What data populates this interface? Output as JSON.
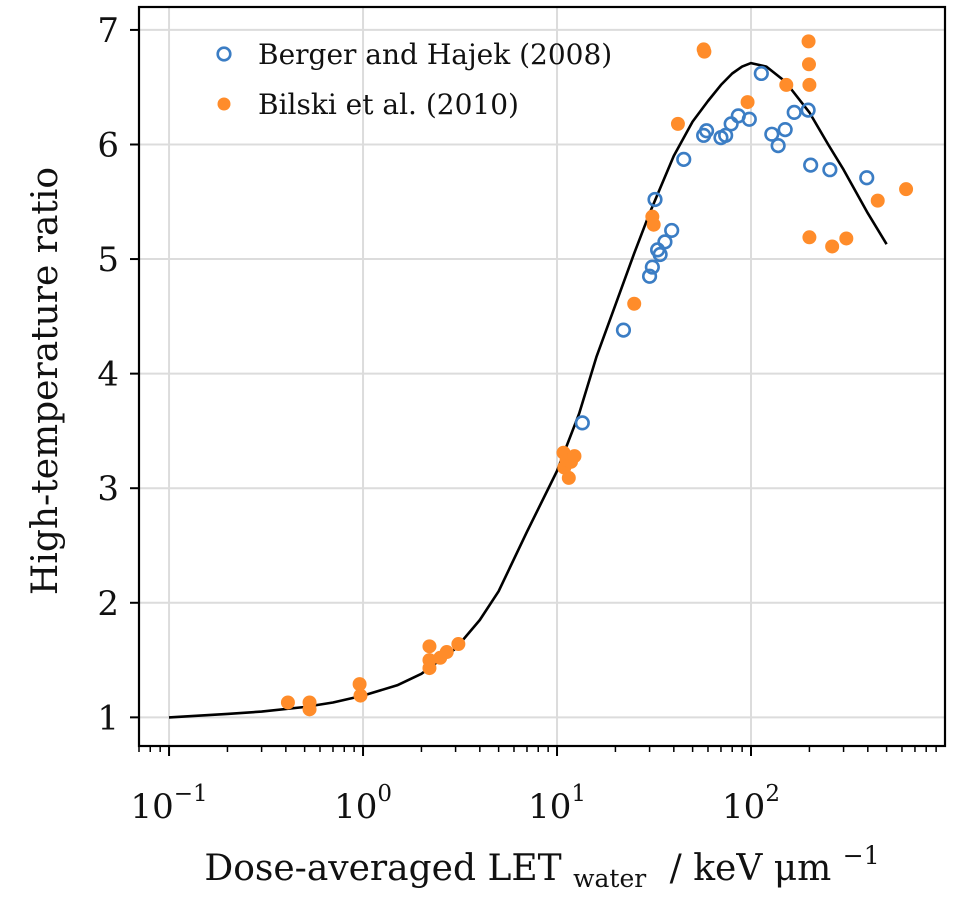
{
  "chart_data": {
    "type": "scatter",
    "xscale": "log",
    "xlim": [
      0.07,
      1000
    ],
    "ylim": [
      0.75,
      7.2
    ],
    "grid": true,
    "legend_position": "top-left",
    "ylabel": "High-temperature ratio",
    "xlabel": {
      "main": "Dose-averaged LET",
      "subscript": "water",
      "unit": "/ keV μm",
      "unit_exponent": "−1"
    },
    "y_ticks": [
      1,
      2,
      3,
      4,
      5,
      6,
      7
    ],
    "y_tick_labels": [
      "1",
      "2",
      "3",
      "4",
      "5",
      "6",
      "7"
    ],
    "x_ticks": [
      0.1,
      1,
      10,
      100
    ],
    "x_tick_labels": [
      {
        "base": "10",
        "exp": "−1"
      },
      {
        "base": "10",
        "exp": "0"
      },
      {
        "base": "10",
        "exp": "1"
      },
      {
        "base": "10",
        "exp": "2"
      }
    ],
    "series": [
      {
        "name": "Berger and Hajek (2008)",
        "marker": "open-circle",
        "color": "#3b7dc4",
        "points": [
          [
            13.5,
            3.57
          ],
          [
            22,
            4.38
          ],
          [
            30,
            4.85
          ],
          [
            31,
            4.93
          ],
          [
            32,
            5.52
          ],
          [
            33,
            5.08
          ],
          [
            34,
            5.04
          ],
          [
            36,
            5.15
          ],
          [
            39,
            5.25
          ],
          [
            45,
            5.87
          ],
          [
            57,
            6.08
          ],
          [
            59,
            6.12
          ],
          [
            70,
            6.06
          ],
          [
            74,
            6.08
          ],
          [
            79,
            6.18
          ],
          [
            86,
            6.25
          ],
          [
            98,
            6.22
          ],
          [
            113,
            6.62
          ],
          [
            128,
            6.09
          ],
          [
            138,
            5.99
          ],
          [
            150,
            6.13
          ],
          [
            167,
            6.28
          ],
          [
            197,
            6.3
          ],
          [
            203,
            5.82
          ],
          [
            255,
            5.78
          ],
          [
            395,
            5.71
          ]
        ]
      },
      {
        "name": "Bilski et al. (2010)",
        "marker": "filled-circle",
        "color": "#ff8c2a",
        "points": [
          [
            0.41,
            1.13
          ],
          [
            0.53,
            1.07
          ],
          [
            0.53,
            1.13
          ],
          [
            0.96,
            1.29
          ],
          [
            0.97,
            1.19
          ],
          [
            2.2,
            1.62
          ],
          [
            2.2,
            1.5
          ],
          [
            2.2,
            1.43
          ],
          [
            2.5,
            1.52
          ],
          [
            2.7,
            1.57
          ],
          [
            3.1,
            1.64
          ],
          [
            10.8,
            3.31
          ],
          [
            10.9,
            3.18
          ],
          [
            11.2,
            3.24
          ],
          [
            11.5,
            3.09
          ],
          [
            11.8,
            3.23
          ],
          [
            12.3,
            3.28
          ],
          [
            25,
            4.61
          ],
          [
            31,
            5.37
          ],
          [
            31.5,
            5.3
          ],
          [
            42,
            6.18
          ],
          [
            57,
            6.83
          ],
          [
            57.5,
            6.81
          ],
          [
            96,
            6.37
          ],
          [
            152,
            6.52
          ],
          [
            198,
            6.9
          ],
          [
            199,
            6.7
          ],
          [
            200,
            6.52
          ],
          [
            200,
            5.19
          ],
          [
            262,
            5.11
          ],
          [
            310,
            5.18
          ],
          [
            450,
            5.51
          ],
          [
            630,
            5.61
          ]
        ]
      },
      {
        "name": "",
        "type": "line",
        "color": "#000000",
        "points": [
          [
            0.1,
            1.0
          ],
          [
            0.2,
            1.03
          ],
          [
            0.3,
            1.05
          ],
          [
            0.5,
            1.09
          ],
          [
            0.7,
            1.13
          ],
          [
            1,
            1.19
          ],
          [
            1.5,
            1.28
          ],
          [
            2,
            1.38
          ],
          [
            3,
            1.6
          ],
          [
            4,
            1.85
          ],
          [
            5,
            2.1
          ],
          [
            7,
            2.62
          ],
          [
            10,
            3.15
          ],
          [
            13,
            3.65
          ],
          [
            16,
            4.15
          ],
          [
            20,
            4.6
          ],
          [
            25,
            5.05
          ],
          [
            30,
            5.4
          ],
          [
            40,
            5.9
          ],
          [
            50,
            6.2
          ],
          [
            60,
            6.38
          ],
          [
            70,
            6.52
          ],
          [
            80,
            6.62
          ],
          [
            90,
            6.68
          ],
          [
            100,
            6.71
          ],
          [
            120,
            6.68
          ],
          [
            150,
            6.55
          ],
          [
            200,
            6.28
          ],
          [
            250,
            6.0
          ],
          [
            300,
            5.78
          ],
          [
            400,
            5.4
          ],
          [
            500,
            5.13
          ]
        ]
      }
    ]
  }
}
